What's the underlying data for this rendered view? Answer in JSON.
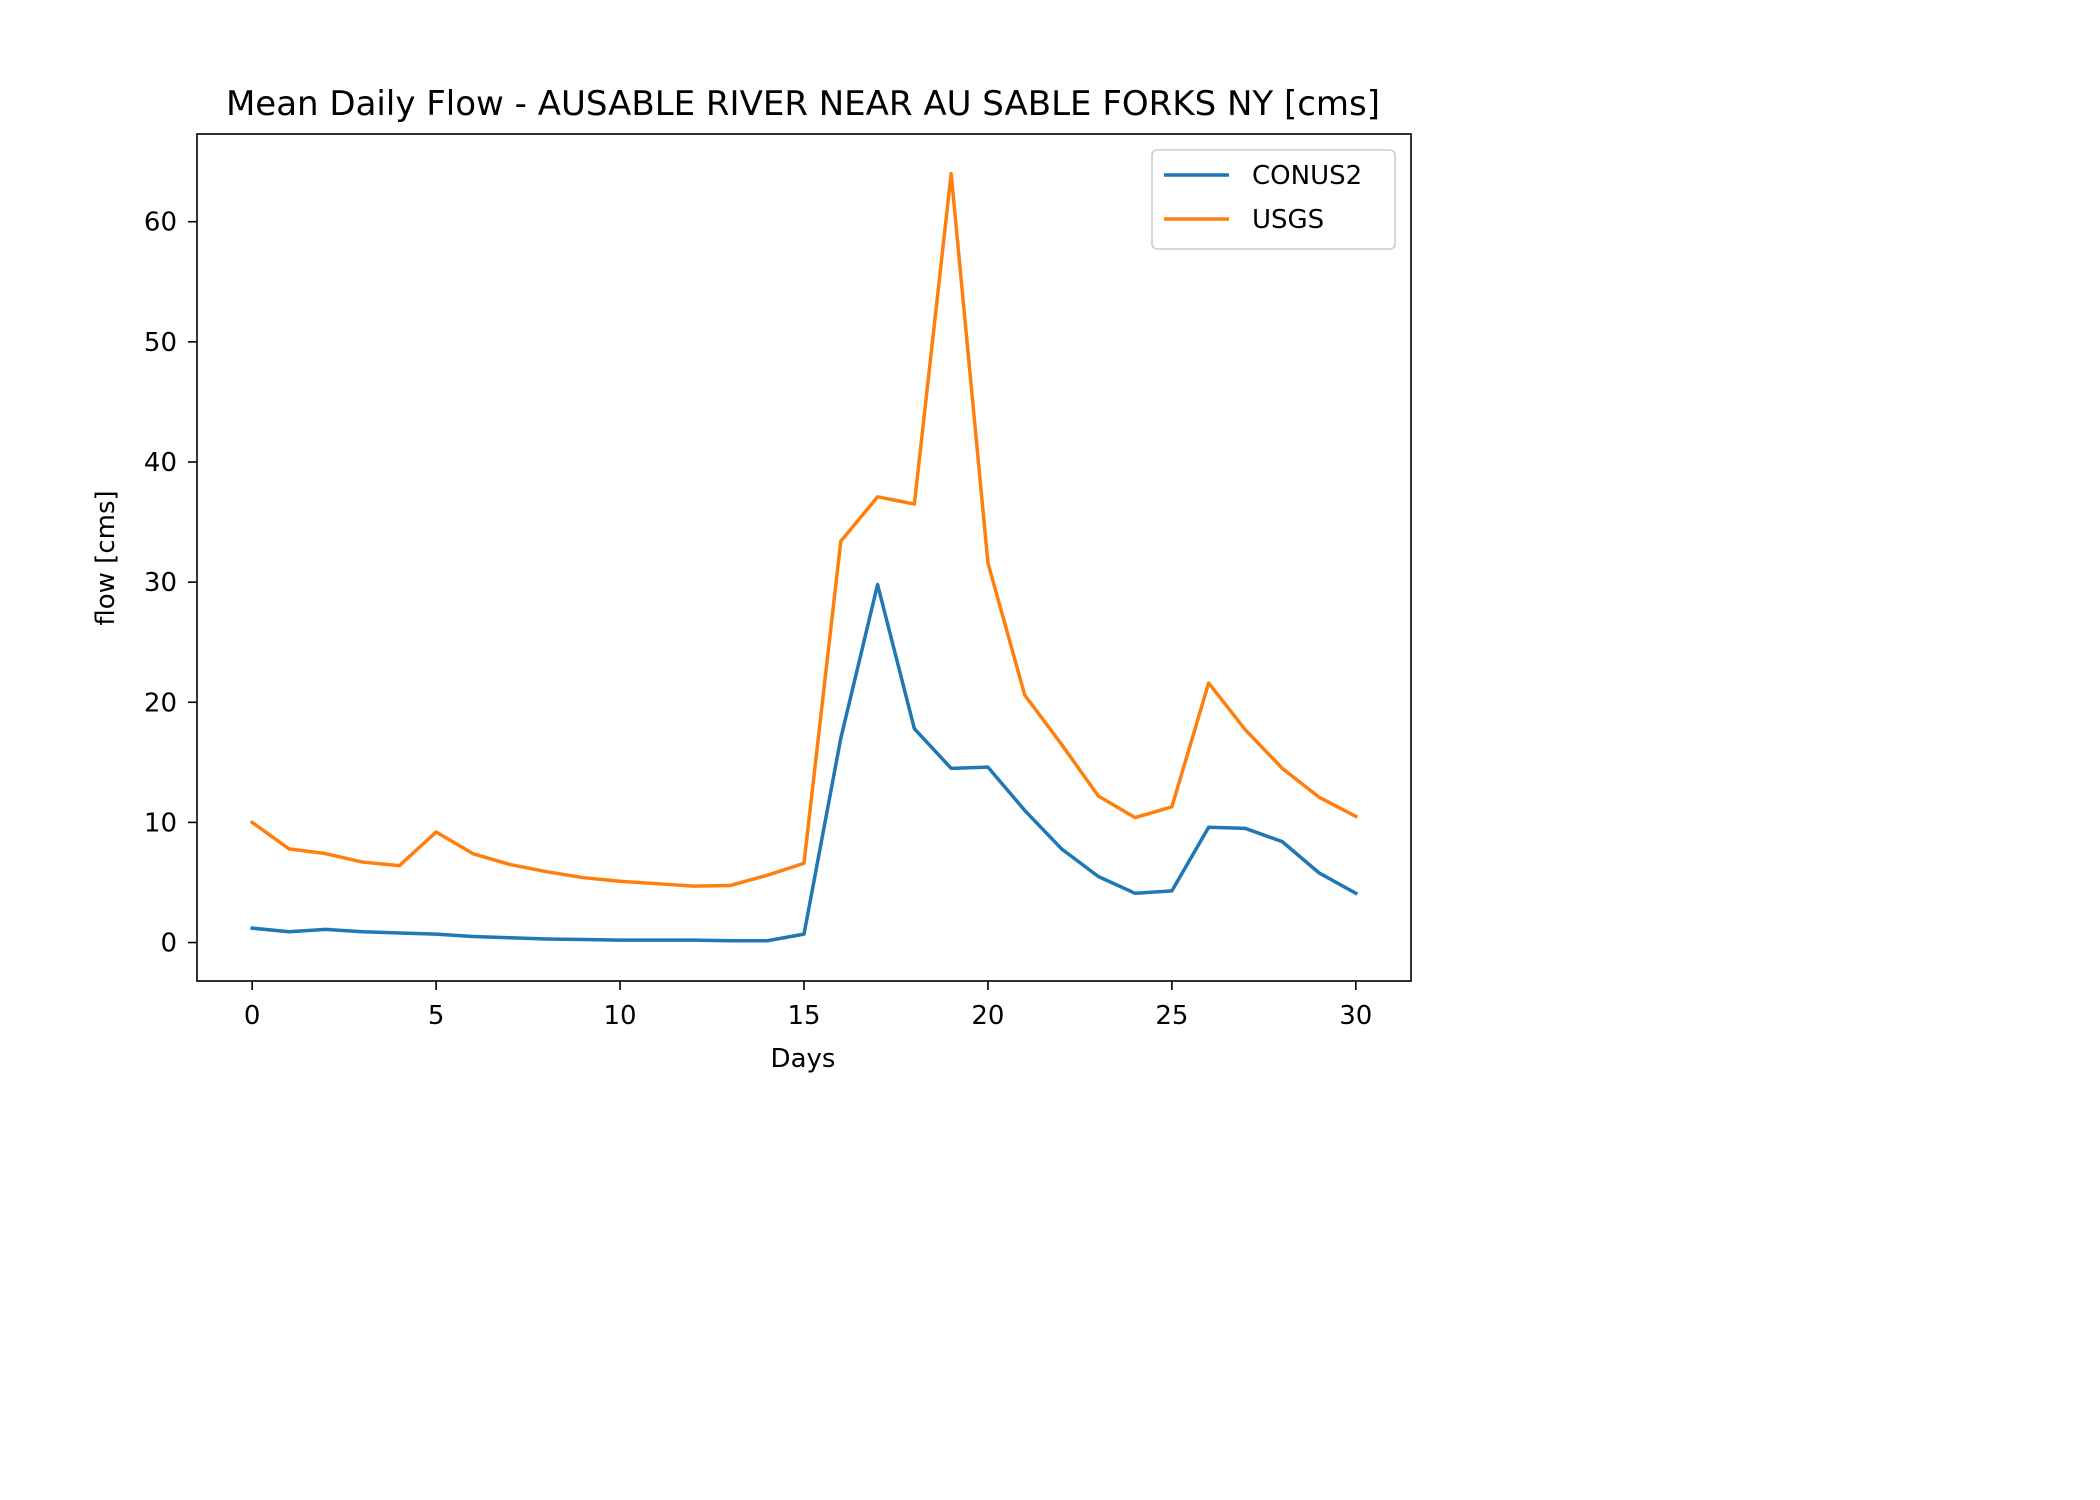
{
  "chart_data": {
    "type": "line",
    "title": "Mean Daily Flow - AUSABLE RIVER NEAR AU SABLE FORKS NY [cms]",
    "xlabel": "Days",
    "ylabel": "flow [cms]",
    "xlim": [
      -1.5,
      31.5
    ],
    "ylim": [
      -3.2,
      67.3
    ],
    "x_ticks": [
      0,
      5,
      10,
      15,
      20,
      25,
      30
    ],
    "y_ticks": [
      0,
      10,
      20,
      30,
      40,
      50,
      60
    ],
    "grid": false,
    "legend_position": "top-right",
    "x": [
      0,
      1,
      2,
      3,
      4,
      5,
      6,
      7,
      8,
      9,
      10,
      11,
      12,
      13,
      14,
      15,
      16,
      17,
      18,
      19,
      20,
      21,
      22,
      23,
      24,
      25,
      26,
      27,
      28,
      29,
      30
    ],
    "series": [
      {
        "name": "CONUS2",
        "color": "#1f77b4",
        "values": [
          1.2,
          0.9,
          1.1,
          0.9,
          0.8,
          0.7,
          0.5,
          0.4,
          0.3,
          0.25,
          0.2,
          0.2,
          0.2,
          0.15,
          0.15,
          0.7,
          17.0,
          29.8,
          17.8,
          14.5,
          14.6,
          11.0,
          7.8,
          5.5,
          4.1,
          4.3,
          9.6,
          9.5,
          8.4,
          5.8,
          4.1
        ]
      },
      {
        "name": "USGS",
        "color": "#ff7f0e",
        "values": [
          10.0,
          7.8,
          7.4,
          6.7,
          6.4,
          9.2,
          7.4,
          6.5,
          5.9,
          5.4,
          5.1,
          4.9,
          4.7,
          4.75,
          5.6,
          6.6,
          33.4,
          37.1,
          36.5,
          64.0,
          31.6,
          20.6,
          16.5,
          12.2,
          10.4,
          11.3,
          21.6,
          17.7,
          14.5,
          12.1,
          10.5
        ]
      }
    ]
  }
}
